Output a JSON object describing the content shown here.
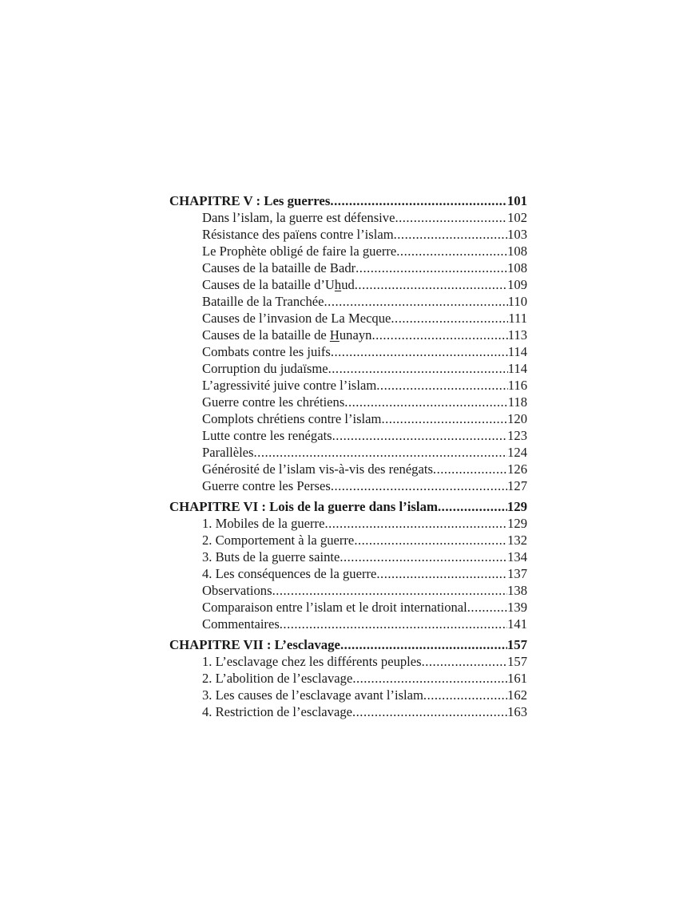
{
  "toc": [
    {
      "type": "chapter",
      "title": "CHAPITRE V : Les guerres",
      "page": "101"
    },
    {
      "type": "entry",
      "title": "Dans l’islam, la guerre est défensive ",
      "page": "102"
    },
    {
      "type": "entry",
      "title": "Résistance des païens contre l’islam",
      "page": "103"
    },
    {
      "type": "entry",
      "title": "Le Prophète obligé de faire la guerre ",
      "page": "108"
    },
    {
      "type": "entry",
      "title": "Causes de la bataille de Badr",
      "page": "108"
    },
    {
      "type": "entry",
      "title": "Causes de la bataille d’Uhud",
      "title_parts": [
        "Causes de la bataille d’U",
        "h",
        "ud"
      ],
      "page": "109"
    },
    {
      "type": "entry",
      "title": "Bataille de la Tranchée",
      "page": "110"
    },
    {
      "type": "entry",
      "title": "Causes de l’invasion de La Mecque",
      "page": "111"
    },
    {
      "type": "entry",
      "title": "Causes de la bataille de Hunayn",
      "title_parts": [
        "Causes de la bataille de ",
        "H",
        "unayn"
      ],
      "page": "113"
    },
    {
      "type": "entry",
      "title": "Combats contre les juifs",
      "page": "114"
    },
    {
      "type": "entry",
      "title": "Corruption du judaïsme ",
      "page": "114"
    },
    {
      "type": "entry",
      "title": "L’agressivité juive contre l’islam",
      "page": "116"
    },
    {
      "type": "entry",
      "title": "Guerre contre les chrétiens ",
      "page": "118"
    },
    {
      "type": "entry",
      "title": "Complots chrétiens contre l’islam ",
      "page": "120"
    },
    {
      "type": "entry",
      "title": "Lutte contre les renégats ",
      "page": "123"
    },
    {
      "type": "entry",
      "title": "Parallèles ",
      "page": "124"
    },
    {
      "type": "entry",
      "title": "Générosité de l’islam vis-à-vis des renégats ",
      "page": "126"
    },
    {
      "type": "entry",
      "title": "Guerre contre les Perses ",
      "page": "127"
    },
    {
      "type": "chapter",
      "title": "CHAPITRE VI : Lois de la guerre dans l’islam",
      "page": "129"
    },
    {
      "type": "entry",
      "title": "1. Mobiles de la guerre ",
      "page": "129"
    },
    {
      "type": "entry",
      "title": "2. Comportement à la guerre",
      "page": "132"
    },
    {
      "type": "entry",
      "title": "3. Buts de la guerre sainte",
      "page": "134"
    },
    {
      "type": "entry",
      "title": "4. Les conséquences de la guerre ",
      "page": "137"
    },
    {
      "type": "entry",
      "title": "Observations ",
      "page": "138"
    },
    {
      "type": "entry",
      "title": "Comparaison entre l’islam et le droit international",
      "page": "139"
    },
    {
      "type": "entry",
      "title": "Commentaires ",
      "page": "141"
    },
    {
      "type": "chapter",
      "title": "CHAPITRE VII : L’esclavage",
      "page": "157"
    },
    {
      "type": "entry",
      "title": "1. L’esclavage chez les différents peuples ",
      "page": "157"
    },
    {
      "type": "entry",
      "title": "2. L’abolition de l’esclavage ",
      "page": "161"
    },
    {
      "type": "entry",
      "title": "3. Les causes de l’esclavage avant l’islam ",
      "page": "162"
    },
    {
      "type": "entry",
      "title": "4. Restriction de l’esclavage",
      "page": "163"
    }
  ]
}
